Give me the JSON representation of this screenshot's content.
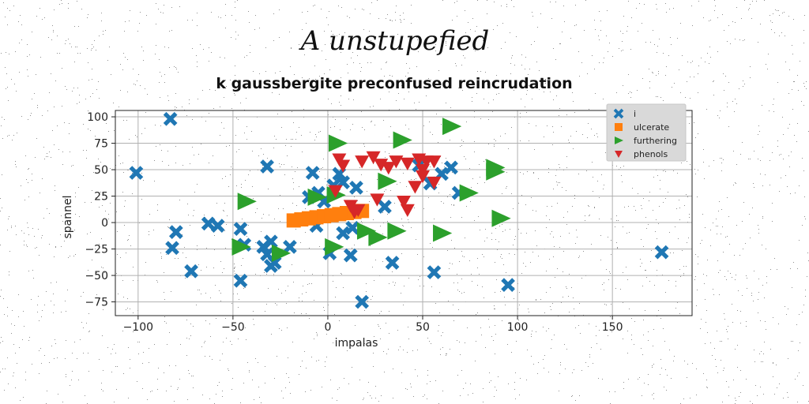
{
  "figure_title": "A unstupefied",
  "colors": {
    "series_0": "#1f77b4",
    "series_1": "#ff7f0e",
    "series_2": "#2ca02c",
    "series_3": "#d62728",
    "grid": "#b0b0b0"
  },
  "chart_data": {
    "type": "scatter",
    "title": "k gaussbergite preconfused reincrudation",
    "xlabel": "impalas",
    "ylabel": "spannel",
    "xlim": [
      -112,
      192
    ],
    "ylim": [
      -88,
      106
    ],
    "xticks": [
      "−100",
      "−50",
      "0",
      "50",
      "100",
      "150"
    ],
    "xtick_values": [
      -100,
      -50,
      0,
      50,
      100,
      150
    ],
    "yticks": [
      "100",
      "75",
      "50",
      "25",
      "0",
      "−25",
      "−50",
      "−75"
    ],
    "ytick_values": [
      100,
      75,
      50,
      25,
      0,
      -25,
      -50,
      -75
    ],
    "grid": true,
    "legend_position": "top-right",
    "series": [
      {
        "name": "i",
        "marker": "x",
        "color": "#1f77b4",
        "x": [
          -83,
          -101,
          -80,
          -82,
          -72,
          -63,
          -58,
          -46,
          -44,
          -46,
          -32,
          -30,
          -32,
          -28,
          -34,
          -30,
          -20,
          -10,
          -5,
          -8,
          -6,
          3,
          6,
          8,
          8,
          12,
          15,
          30,
          34,
          48,
          54,
          56,
          60,
          69,
          65,
          95,
          176,
          18,
          13,
          1,
          -2
        ],
        "y": [
          98,
          47,
          -9,
          -24,
          -46,
          -1,
          -3,
          -6,
          -21,
          -55,
          53,
          -18,
          -30,
          -38,
          -23,
          -41,
          -23,
          24,
          28,
          47,
          -3,
          35,
          46,
          38,
          -10,
          -31,
          33,
          15,
          -38,
          54,
          37,
          -47,
          46,
          28,
          52,
          -59,
          -28,
          -75,
          -5,
          -29,
          20
        ]
      },
      {
        "name": "ulcerate",
        "marker": "s",
        "color": "#ff7f0e",
        "x": [
          -18,
          -14,
          -10,
          -6,
          -2,
          2,
          6,
          10,
          14,
          18
        ],
        "y": [
          2,
          3,
          4,
          5,
          6,
          7,
          8,
          9,
          10,
          11
        ]
      },
      {
        "name": "furthering",
        "marker": ">",
        "color": "#2ca02c",
        "x": [
          5,
          39,
          65,
          88,
          88,
          74,
          91,
          -43,
          -6,
          4,
          20,
          26,
          36,
          60,
          -46,
          -25,
          3,
          31
        ],
        "y": [
          75,
          78,
          91,
          52,
          48,
          28,
          4,
          20,
          24,
          26,
          -8,
          -14,
          -8,
          -10,
          -23,
          -29,
          -23,
          39
        ]
      },
      {
        "name": "phenols",
        "marker": "v",
        "color": "#d62728",
        "x": [
          6,
          8,
          18,
          24,
          28,
          32,
          36,
          42,
          48,
          50,
          52,
          56,
          50,
          46,
          56,
          26,
          16,
          12,
          4,
          40,
          42,
          14
        ],
        "y": [
          60,
          54,
          58,
          62,
          55,
          52,
          58,
          56,
          60,
          50,
          58,
          58,
          44,
          34,
          38,
          22,
          12,
          16,
          30,
          20,
          12,
          10
        ]
      }
    ]
  }
}
